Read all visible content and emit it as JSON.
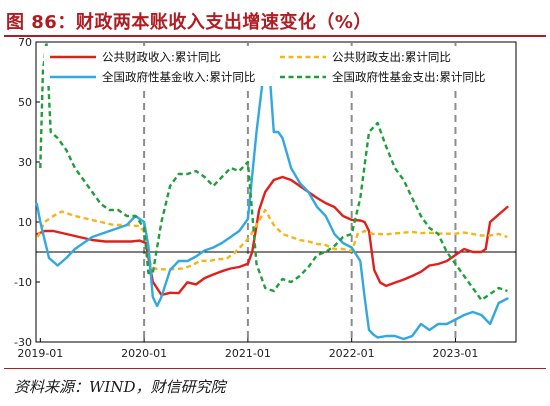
{
  "title": "图 86：财政两本账收入支出增速变化（%）",
  "source": "资料来源：WIND，财信研究院",
  "colors": {
    "accent": "#b01c22",
    "s1": "#e0201c",
    "s2": "#f5b418",
    "s3": "#33a8e0",
    "s4": "#1f9e3a"
  },
  "chart_data": {
    "type": "line",
    "title": "财政两本账收入支出增速变化（%）",
    "xlabel": "",
    "ylabel": "",
    "x_range": [
      "2018-12",
      "2023-06"
    ],
    "x_ticks": [
      {
        "t": 0,
        "label": "2019-01"
      },
      {
        "t": 12,
        "label": "2020-01"
      },
      {
        "t": 24,
        "label": "2021-01"
      },
      {
        "t": 36,
        "label": "2022-01"
      },
      {
        "t": 48,
        "label": "2023-01"
      }
    ],
    "ylim": [
      -30,
      70
    ],
    "y_ticks": [
      -30,
      -10,
      10,
      30,
      50,
      70
    ],
    "zero_line": true,
    "ref_lines_dates": [
      "2020-01",
      "2021-01",
      "2022-01",
      "2023-01"
    ],
    "legend": [
      {
        "label": "公共财政收入:累计同比",
        "key": "s1",
        "style": "solid"
      },
      {
        "label": "公共财政支出:累计同比",
        "key": "s2",
        "style": "dashed"
      },
      {
        "label": "全国政府性基金收入:累计同比",
        "key": "s3",
        "style": "solid"
      },
      {
        "label": "全国政府性基金支出:累计同比",
        "key": "s4",
        "style": "dashed"
      }
    ],
    "series": [
      {
        "name": "公共财政收入:累计同比",
        "key": "s1",
        "style": "solid",
        "points": [
          [
            -0.3,
            6
          ],
          [
            0.5,
            7
          ],
          [
            1.5,
            7
          ],
          [
            3,
            6
          ],
          [
            4.5,
            5
          ],
          [
            6,
            4
          ],
          [
            7.5,
            3.5
          ],
          [
            9,
            3.5
          ],
          [
            10.5,
            3.5
          ],
          [
            11.5,
            3.8
          ],
          [
            12.2,
            3
          ],
          [
            13,
            -9.9
          ],
          [
            14,
            -14.3
          ],
          [
            15,
            -13.6
          ],
          [
            16,
            -13.7
          ],
          [
            17,
            -10.1
          ],
          [
            18,
            -10.8
          ],
          [
            19,
            -8.7
          ],
          [
            20,
            -7.5
          ],
          [
            21,
            -6.4
          ],
          [
            22,
            -5.5
          ],
          [
            23,
            -5
          ],
          [
            24,
            -3.9
          ],
          [
            24.5,
            0
          ],
          [
            25.3,
            14
          ],
          [
            26,
            20
          ],
          [
            27,
            24
          ],
          [
            28,
            25
          ],
          [
            29,
            24
          ],
          [
            30,
            22
          ],
          [
            31,
            20
          ],
          [
            32,
            18
          ],
          [
            33,
            16.3
          ],
          [
            34,
            15
          ],
          [
            35,
            12
          ],
          [
            36,
            10.7
          ],
          [
            37,
            10.5
          ],
          [
            37.5,
            10
          ],
          [
            38,
            7
          ],
          [
            38.6,
            -6
          ],
          [
            39.3,
            -10.2
          ],
          [
            40,
            -11.3
          ],
          [
            41,
            -10.2
          ],
          [
            42,
            -9.2
          ],
          [
            43,
            -8
          ],
          [
            44,
            -6.6
          ],
          [
            45,
            -4.5
          ],
          [
            46,
            -4
          ],
          [
            47,
            -3
          ],
          [
            48,
            -1
          ],
          [
            49,
            1
          ],
          [
            50,
            0
          ],
          [
            51,
            0
          ],
          [
            51.5,
            1
          ],
          [
            52,
            10
          ],
          [
            53,
            12.5
          ],
          [
            54,
            15
          ]
        ]
      },
      {
        "name": "公共财政支出:累计同比",
        "key": "s2",
        "style": "dashed",
        "points": [
          [
            -0.3,
            5
          ],
          [
            0.5,
            10
          ],
          [
            1.5,
            12
          ],
          [
            2.5,
            13.5
          ],
          [
            4,
            12
          ],
          [
            5.5,
            11
          ],
          [
            7,
            10
          ],
          [
            8.5,
            9
          ],
          [
            10,
            9
          ],
          [
            11.5,
            8.6
          ],
          [
            12.2,
            6
          ],
          [
            12.8,
            -5
          ],
          [
            13.5,
            -5.7
          ],
          [
            14.5,
            -5.8
          ],
          [
            15.5,
            -5.7
          ],
          [
            16.5,
            -5.5
          ],
          [
            17.5,
            -4.5
          ],
          [
            18.5,
            -2.9
          ],
          [
            19.5,
            -3
          ],
          [
            20.5,
            -2.4
          ],
          [
            21.5,
            -2.3
          ],
          [
            22.5,
            -0.2
          ],
          [
            23.5,
            2.8
          ],
          [
            24.2,
            5
          ],
          [
            25,
            9
          ],
          [
            26,
            14
          ],
          [
            27,
            9
          ],
          [
            28,
            6
          ],
          [
            29,
            5
          ],
          [
            30,
            4
          ],
          [
            31,
            3.5
          ],
          [
            32,
            2.7
          ],
          [
            33,
            2.3
          ],
          [
            34,
            1
          ],
          [
            35,
            1
          ],
          [
            36,
            0.3
          ],
          [
            36.7,
            6
          ],
          [
            37.5,
            7
          ],
          [
            38.5,
            6
          ],
          [
            40,
            5.9
          ],
          [
            41.5,
            6.3
          ],
          [
            43,
            6.7
          ],
          [
            44,
            6.3
          ],
          [
            45,
            6.4
          ],
          [
            46,
            6.2
          ],
          [
            47,
            6.1
          ],
          [
            48,
            6.1
          ],
          [
            49,
            6.5
          ],
          [
            50,
            6
          ],
          [
            51,
            5.5
          ],
          [
            52,
            5.5
          ],
          [
            53,
            6
          ],
          [
            54,
            5
          ]
        ]
      },
      {
        "name": "全国政府性基金收入:累计同比",
        "key": "s3",
        "style": "solid",
        "points": [
          [
            -0.4,
            16
          ],
          [
            0,
            10
          ],
          [
            1,
            -2
          ],
          [
            2,
            -4.5
          ],
          [
            3,
            -2
          ],
          [
            4,
            1
          ],
          [
            5,
            3
          ],
          [
            6,
            5
          ],
          [
            7,
            6
          ],
          [
            8,
            7
          ],
          [
            9,
            8
          ],
          [
            10,
            9
          ],
          [
            11,
            12
          ],
          [
            12,
            10
          ],
          [
            12.5,
            2
          ],
          [
            13,
            -15
          ],
          [
            13.5,
            -18
          ],
          [
            14,
            -15
          ],
          [
            15,
            -6
          ],
          [
            16,
            -3
          ],
          [
            17,
            -3
          ],
          [
            18,
            -1.5
          ],
          [
            19,
            0.5
          ],
          [
            20,
            1.5
          ],
          [
            21,
            3
          ],
          [
            22,
            5
          ],
          [
            23,
            7
          ],
          [
            24,
            11
          ],
          [
            25,
            40
          ],
          [
            26,
            64
          ],
          [
            26.5,
            60
          ],
          [
            27,
            40
          ],
          [
            27.5,
            40
          ],
          [
            28,
            38
          ],
          [
            29,
            28
          ],
          [
            30,
            23
          ],
          [
            31,
            20
          ],
          [
            32,
            15
          ],
          [
            33,
            12
          ],
          [
            34,
            6
          ],
          [
            35,
            3
          ],
          [
            36,
            1.5
          ],
          [
            37,
            -3
          ],
          [
            37.5,
            -15
          ],
          [
            38,
            -26
          ],
          [
            38.5,
            -27.5
          ],
          [
            39,
            -28.5
          ],
          [
            40,
            -28
          ],
          [
            41,
            -28
          ],
          [
            42,
            -29
          ],
          [
            43,
            -28
          ],
          [
            44,
            -24
          ],
          [
            45,
            -26
          ],
          [
            46,
            -24
          ],
          [
            47,
            -24
          ],
          [
            48,
            -22.5
          ],
          [
            49,
            -21
          ],
          [
            50,
            -20
          ],
          [
            51,
            -21
          ],
          [
            52,
            -24
          ],
          [
            53,
            -17
          ],
          [
            54,
            -15.5
          ]
        ]
      },
      {
        "name": "全国政府性基金支出:累计同比",
        "key": "s4",
        "style": "dashed",
        "points": [
          [
            0,
            28
          ],
          [
            0.3,
            60
          ],
          [
            0.7,
            70
          ],
          [
            1.2,
            40
          ],
          [
            2,
            38
          ],
          [
            3,
            34
          ],
          [
            4,
            28
          ],
          [
            5,
            24
          ],
          [
            6,
            20
          ],
          [
            7,
            16
          ],
          [
            8,
            14
          ],
          [
            9,
            14
          ],
          [
            10,
            12
          ],
          [
            11,
            12
          ],
          [
            12,
            8
          ],
          [
            12.5,
            -7
          ],
          [
            13,
            -7
          ],
          [
            14,
            10
          ],
          [
            15,
            22
          ],
          [
            16,
            26
          ],
          [
            17,
            26
          ],
          [
            18,
            27
          ],
          [
            19,
            25
          ],
          [
            20,
            22
          ],
          [
            21,
            25
          ],
          [
            22,
            28
          ],
          [
            23,
            27
          ],
          [
            24,
            30
          ],
          [
            25,
            -4
          ],
          [
            26,
            -12
          ],
          [
            27,
            -13
          ],
          [
            28,
            -9
          ],
          [
            29,
            -10
          ],
          [
            30,
            -8
          ],
          [
            31,
            -5
          ],
          [
            32,
            -1
          ],
          [
            33,
            0
          ],
          [
            34,
            2
          ],
          [
            35,
            5
          ],
          [
            36,
            6
          ],
          [
            37,
            18
          ],
          [
            38,
            40
          ],
          [
            39,
            43
          ],
          [
            40,
            35
          ],
          [
            41,
            28
          ],
          [
            42,
            24
          ],
          [
            43,
            18
          ],
          [
            44,
            12
          ],
          [
            45,
            8
          ],
          [
            46,
            6
          ],
          [
            47,
            0
          ],
          [
            48,
            -4
          ],
          [
            49,
            -8
          ],
          [
            50,
            -12
          ],
          [
            51,
            -16
          ],
          [
            52,
            -14
          ],
          [
            53,
            -12
          ],
          [
            54,
            -13
          ]
        ]
      }
    ]
  }
}
